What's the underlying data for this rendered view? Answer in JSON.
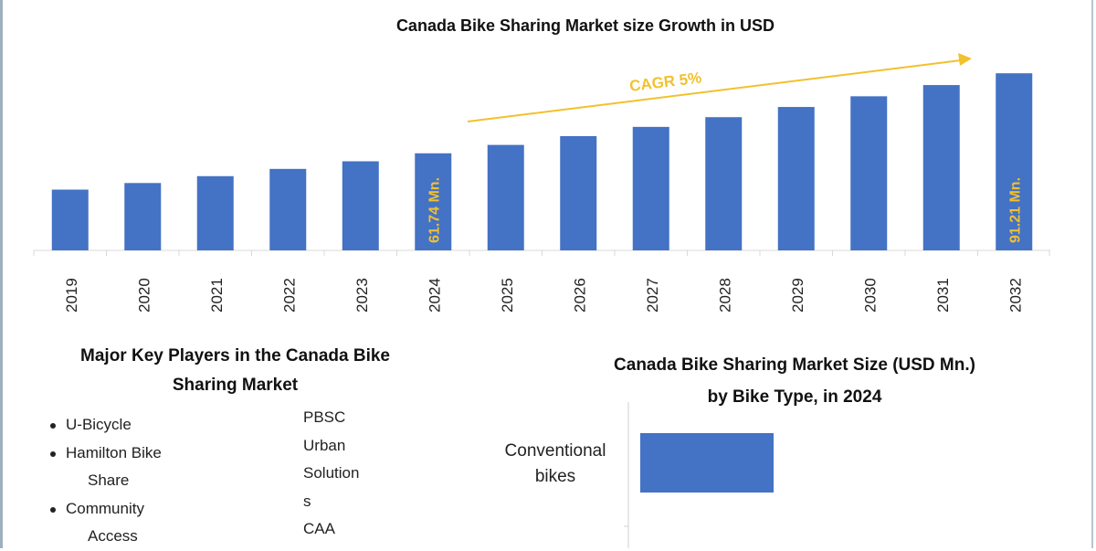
{
  "chart_data": [
    {
      "type": "bar",
      "title": "Canada Bike Sharing Market size Growth in USD",
      "categories": [
        "2019",
        "2020",
        "2021",
        "2022",
        "2023",
        "2024",
        "2025",
        "2026",
        "2027",
        "2028",
        "2029",
        "2030",
        "2031",
        "2032"
      ],
      "values": [
        48.37,
        50.79,
        53.33,
        56.0,
        58.8,
        61.74,
        64.83,
        68.07,
        71.47,
        75.05,
        78.8,
        82.74,
        86.87,
        91.21
      ],
      "data_labels": {
        "2024": "61.74 Mn.",
        "2032": "91.21 Mn."
      },
      "annotation": "CAGR 5%",
      "xlabel": "",
      "ylabel": "",
      "ylim": [
        26,
        98
      ],
      "grid": false,
      "bar_color": "#4472c4",
      "label_color": "#f2c12e"
    },
    {
      "type": "bar",
      "orientation": "horizontal",
      "title": "Canada Bike Sharing Market Size (USD Mn.) by Bike Type, in 2024",
      "title_lines": [
        "Canada Bike Sharing Market Size (USD Mn.)",
        "by Bike Type, in 2024"
      ],
      "categories": [
        "Conventional bikes"
      ],
      "category_lines": [
        "Conventional",
        "bikes"
      ],
      "bar_color": "#4472c4"
    }
  ],
  "players": {
    "title_lines": [
      "Major Key Players in the Canada Bike",
      "Sharing Market"
    ],
    "left": [
      {
        "lines": [
          "U-Bicycle"
        ]
      },
      {
        "lines": [
          "Hamilton Bike",
          "Share"
        ]
      },
      {
        "lines": [
          "Community",
          "Access"
        ]
      }
    ],
    "right_lines": [
      "PBSC",
      "Urban",
      "Solution",
      "s",
      "CAA"
    ]
  }
}
